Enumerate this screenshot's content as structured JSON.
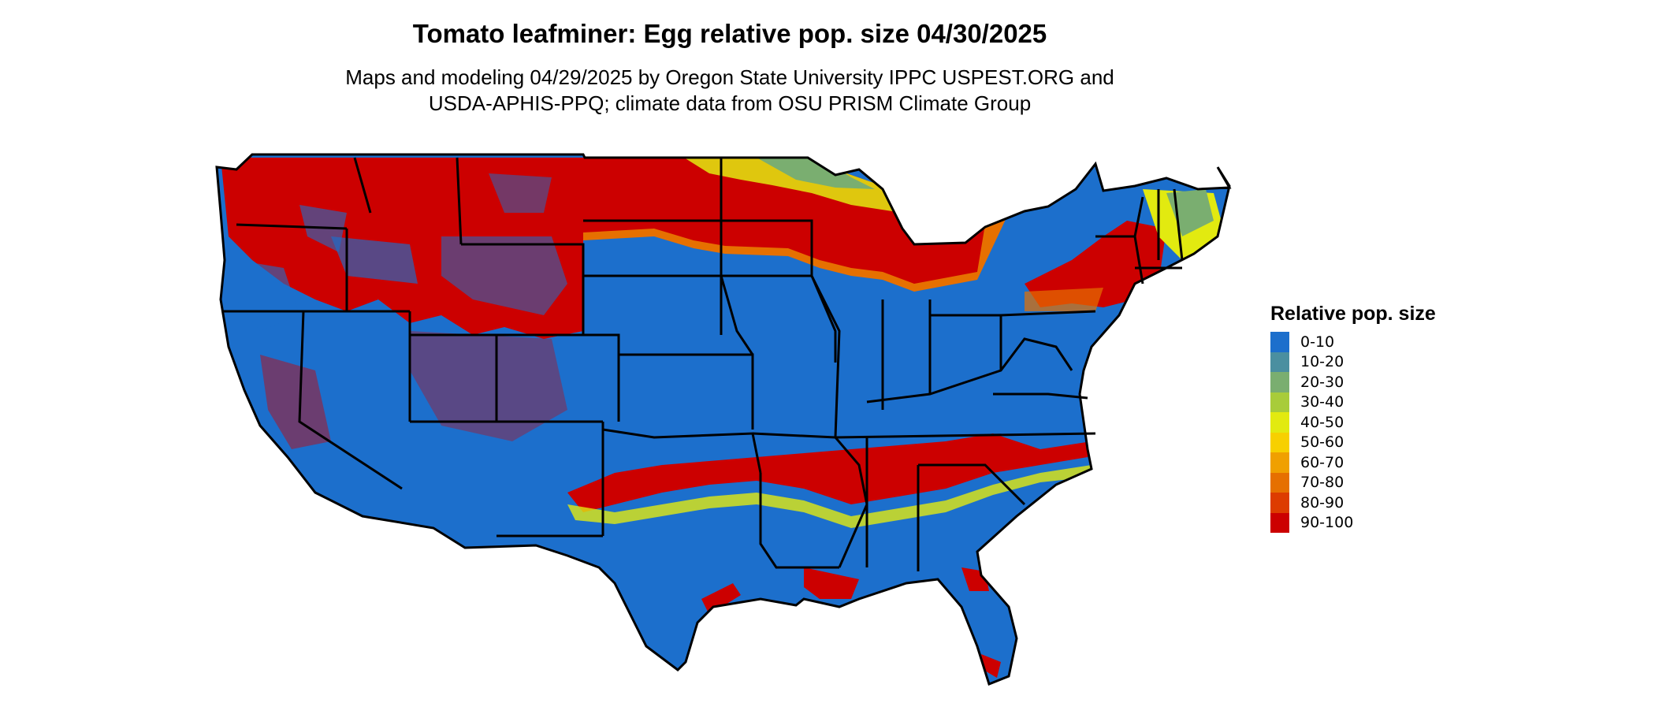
{
  "title": "Tomato leafminer: Egg relative pop. size 04/30/2025",
  "subtitle_lines": [
    "Maps and modeling 04/29/2025 by Oregon State University IPPC USPEST.ORG and",
    "USDA-APHIS-PPQ; climate data from OSU PRISM Climate Group"
  ],
  "legend": {
    "title": "Relative pop. size",
    "items": [
      {
        "label": "0-10",
        "color": "#1c6fcc"
      },
      {
        "label": "10-20",
        "color": "#4a8fa0"
      },
      {
        "label": "20-30",
        "color": "#7aae70"
      },
      {
        "label": "30-40",
        "color": "#a8cc3a"
      },
      {
        "label": "40-50",
        "color": "#e2ea10"
      },
      {
        "label": "50-60",
        "color": "#f7d000"
      },
      {
        "label": "60-70",
        "color": "#f0a000"
      },
      {
        "label": "70-80",
        "color": "#e67000"
      },
      {
        "label": "80-90",
        "color": "#dd3c00"
      },
      {
        "label": "90-100",
        "color": "#cc0000"
      }
    ]
  }
}
